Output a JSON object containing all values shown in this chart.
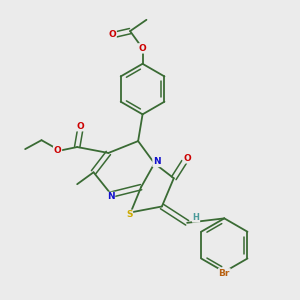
{
  "background_color": "#ebebeb",
  "atom_colors": {
    "C": "#3a6b34",
    "N": "#1010cc",
    "O": "#cc0000",
    "S": "#ccaa00",
    "Br": "#b86010",
    "H": "#4a9a9a"
  },
  "bond_color": "#3a6b34",
  "figsize": [
    3.0,
    3.0
  ],
  "dpi": 100
}
